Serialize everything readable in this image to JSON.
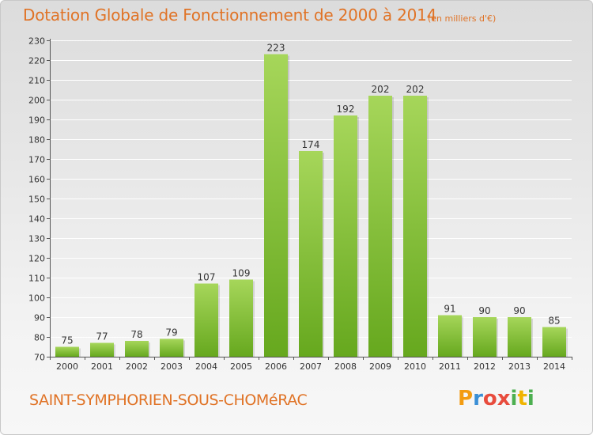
{
  "title": "Dotation Globale de Fonctionnement de 2000 à 2014",
  "unit": "(en milliers d'€)",
  "commune": "SAINT-SYMPHORIEN-SOUS-CHOMéRAC",
  "logo": {
    "letters": [
      "P",
      "r",
      "o",
      "x",
      "i",
      "t",
      "i"
    ],
    "colors": [
      "#f39c12",
      "#3a8fd6",
      "#e84c3d",
      "#e84c3d",
      "#4caf50",
      "#f0b400",
      "#4caf50"
    ]
  },
  "colors": {
    "bar_top": "#a6d65a",
    "bar_bottom": "#66a81e",
    "accent": "#e07326"
  },
  "chart_data": {
    "type": "bar",
    "categories": [
      "2000",
      "2001",
      "2002",
      "2003",
      "2004",
      "2005",
      "2006",
      "2007",
      "2008",
      "2009",
      "2010",
      "2011",
      "2012",
      "2013",
      "2014"
    ],
    "values": [
      75,
      77,
      78,
      79,
      107,
      109,
      223,
      174,
      192,
      202,
      202,
      91,
      90,
      90,
      85
    ],
    "ylim": [
      70,
      230
    ],
    "yticks": [
      70,
      80,
      90,
      100,
      110,
      120,
      130,
      140,
      150,
      160,
      170,
      180,
      190,
      200,
      210,
      220,
      230
    ],
    "grid": true,
    "legend": "none"
  }
}
